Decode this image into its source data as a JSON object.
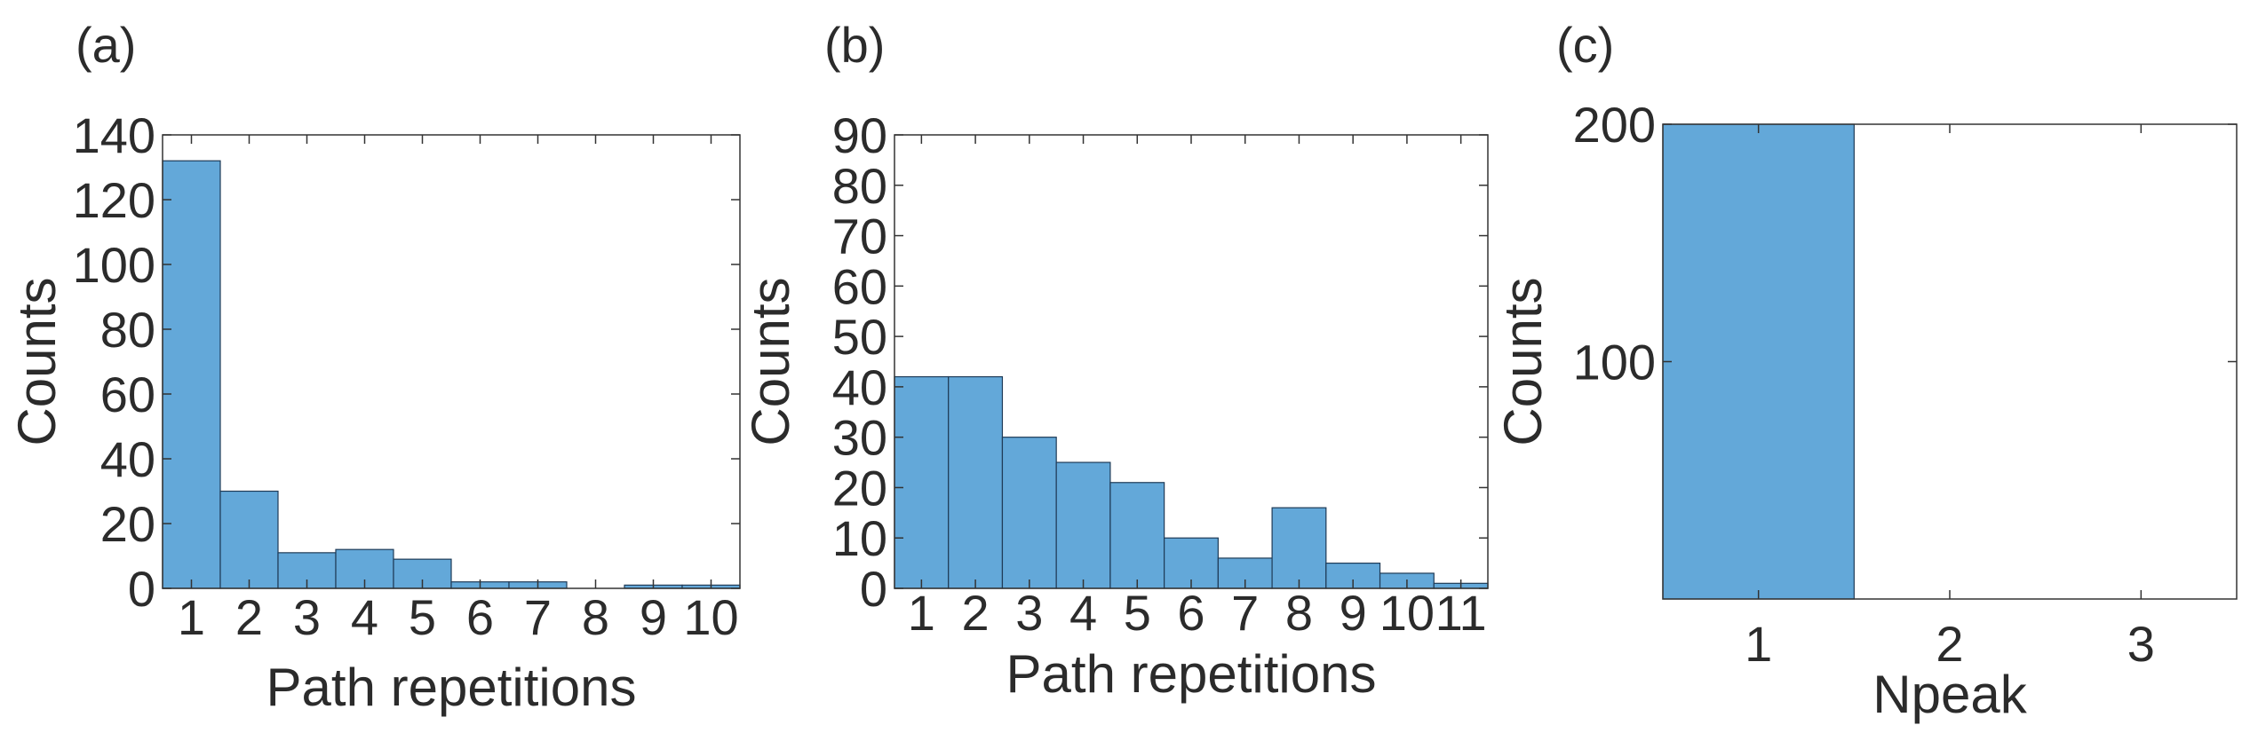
{
  "bar_color": "#63A8D9",
  "chart_data": [
    {
      "type": "bar",
      "panel_label": "(a)",
      "categories": [
        "1",
        "2",
        "3",
        "4",
        "5",
        "6",
        "7",
        "8",
        "9",
        "10"
      ],
      "values": [
        132,
        30,
        11,
        12,
        9,
        2,
        2,
        0,
        1,
        1
      ],
      "yticks": [
        0,
        20,
        40,
        60,
        80,
        100,
        120,
        140
      ],
      "ylim": [
        0,
        140
      ],
      "xlabel": "Path repetitions",
      "ylabel": "Counts",
      "grid": false
    },
    {
      "type": "bar",
      "panel_label": "(b)",
      "categories": [
        "1",
        "2",
        "3",
        "4",
        "5",
        "6",
        "7",
        "8",
        "9",
        "10",
        "11"
      ],
      "values": [
        42,
        42,
        30,
        25,
        21,
        10,
        6,
        16,
        5,
        3,
        1
      ],
      "yticks": [
        0,
        10,
        20,
        30,
        40,
        50,
        60,
        70,
        80,
        90
      ],
      "ylim": [
        0,
        90
      ],
      "xlabel": "Path repetitions",
      "ylabel": "Counts",
      "grid": false
    },
    {
      "type": "bar",
      "panel_label": "(c)",
      "categories": [
        "1",
        "2",
        "3"
      ],
      "values": [
        200,
        0,
        0
      ],
      "yticks": [
        100,
        200
      ],
      "ylim": [
        0,
        200
      ],
      "xlabel": "Npeak",
      "ylabel": "Counts",
      "grid": false
    }
  ]
}
